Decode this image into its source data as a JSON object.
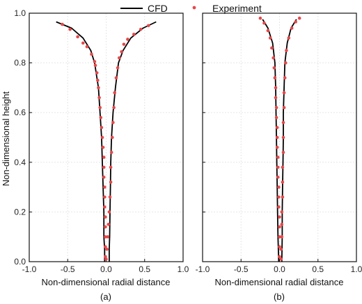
{
  "legend": {
    "cfd_label": "CFD",
    "exp_label": "Experiment",
    "cfd_color": "#000000",
    "exp_color": "#e8474a"
  },
  "y_axis_label": "Non-dimensional height",
  "chart_data": [
    {
      "type": "line",
      "panel_label": "(a)",
      "xlabel": "Non-dimensional radial distance",
      "ylabel": "Non-dimensional height",
      "xlim": [
        -1.0,
        1.0
      ],
      "ylim": [
        0.0,
        1.0
      ],
      "xticks": [
        "-1.0",
        "-0.5",
        "0.0",
        "0.5",
        "1.0"
      ],
      "yticks": [
        "0.0",
        "0.2",
        "0.4",
        "0.6",
        "0.8",
        "1.0"
      ],
      "grid": true,
      "series": [
        {
          "name": "CFD",
          "kind": "line",
          "segments": [
            [
              [
                -0.02,
                0.0
              ],
              [
                -0.02,
                0.05
              ],
              [
                -0.03,
                0.1
              ],
              [
                -0.03,
                0.2
              ],
              [
                -0.04,
                0.3
              ],
              [
                -0.05,
                0.4
              ],
              [
                -0.06,
                0.5
              ],
              [
                -0.08,
                0.6
              ],
              [
                -0.1,
                0.7
              ],
              [
                -0.15,
                0.8
              ],
              [
                -0.2,
                0.85
              ],
              [
                -0.3,
                0.9
              ],
              [
                -0.45,
                0.94
              ],
              [
                -0.65,
                0.965
              ]
            ],
            [
              [
                0.04,
                0.0
              ],
              [
                0.04,
                0.05
              ],
              [
                0.045,
                0.1
              ],
              [
                0.05,
                0.2
              ],
              [
                0.055,
                0.3
              ],
              [
                0.06,
                0.4
              ],
              [
                0.07,
                0.5
              ],
              [
                0.09,
                0.6
              ],
              [
                0.12,
                0.7
              ],
              [
                0.16,
                0.8
              ],
              [
                0.22,
                0.85
              ],
              [
                0.32,
                0.9
              ],
              [
                0.48,
                0.94
              ],
              [
                0.65,
                0.965
              ]
            ]
          ]
        },
        {
          "name": "Experiment",
          "kind": "scatter",
          "points": [
            [
              -0.57,
              0.955
            ],
            [
              -0.47,
              0.935
            ],
            [
              -0.37,
              0.905
            ],
            [
              -0.3,
              0.88
            ],
            [
              -0.25,
              0.865
            ],
            [
              -0.19,
              0.835
            ],
            [
              -0.15,
              0.805
            ],
            [
              -0.14,
              0.79
            ],
            [
              -0.12,
              0.76
            ],
            [
              -0.11,
              0.73
            ],
            [
              -0.1,
              0.7
            ],
            [
              -0.09,
              0.66
            ],
            [
              -0.08,
              0.62
            ],
            [
              -0.07,
              0.58
            ],
            [
              -0.06,
              0.54
            ],
            [
              -0.05,
              0.5
            ],
            [
              -0.04,
              0.46
            ],
            [
              -0.03,
              0.42
            ],
            [
              -0.03,
              0.38
            ],
            [
              -0.03,
              0.34
            ],
            [
              -0.02,
              0.3
            ],
            [
              -0.02,
              0.26
            ],
            [
              -0.02,
              0.22
            ],
            [
              -0.01,
              0.18
            ],
            [
              -0.01,
              0.14
            ],
            [
              -0.01,
              0.1
            ],
            [
              -0.01,
              0.06
            ],
            [
              -0.01,
              0.02
            ],
            [
              0.0,
              0.01
            ],
            [
              0.01,
              0.05
            ],
            [
              0.02,
              0.1
            ],
            [
              0.03,
              0.15
            ],
            [
              0.04,
              0.2
            ],
            [
              0.05,
              0.26
            ],
            [
              0.06,
              0.32
            ],
            [
              0.06,
              0.38
            ],
            [
              0.07,
              0.44
            ],
            [
              0.08,
              0.5
            ],
            [
              0.09,
              0.56
            ],
            [
              0.1,
              0.62
            ],
            [
              0.11,
              0.68
            ],
            [
              0.13,
              0.74
            ],
            [
              0.15,
              0.78
            ],
            [
              0.17,
              0.82
            ],
            [
              0.2,
              0.845
            ],
            [
              0.23,
              0.875
            ],
            [
              0.28,
              0.895
            ],
            [
              0.36,
              0.915
            ],
            [
              0.45,
              0.935
            ],
            [
              0.55,
              0.95
            ]
          ]
        }
      ]
    },
    {
      "type": "line",
      "panel_label": "(b)",
      "xlabel": "Non-dimensional radial distance",
      "xlim": [
        -1.0,
        1.0
      ],
      "ylim": [
        0.0,
        1.0
      ],
      "xticks": [
        "-1.0",
        "-0.5",
        "0.0",
        "0.5",
        "1.0"
      ],
      "yticks": [
        "0.0",
        "0.2",
        "0.4",
        "0.6",
        "0.8",
        "1.0"
      ],
      "grid": true,
      "series": [
        {
          "name": "CFD",
          "kind": "line",
          "segments": [
            [
              [
                -0.01,
                0.0
              ],
              [
                -0.02,
                0.1
              ],
              [
                -0.025,
                0.2
              ],
              [
                -0.03,
                0.3
              ],
              [
                -0.035,
                0.4
              ],
              [
                -0.04,
                0.5
              ],
              [
                -0.045,
                0.6
              ],
              [
                -0.05,
                0.7
              ],
              [
                -0.06,
                0.8
              ],
              [
                -0.09,
                0.88
              ],
              [
                -0.15,
                0.94
              ],
              [
                -0.22,
                0.975
              ]
            ],
            [
              [
                0.03,
                0.0
              ],
              [
                0.035,
                0.1
              ],
              [
                0.035,
                0.2
              ],
              [
                0.04,
                0.3
              ],
              [
                0.045,
                0.4
              ],
              [
                0.05,
                0.5
              ],
              [
                0.05,
                0.6
              ],
              [
                0.06,
                0.7
              ],
              [
                0.07,
                0.8
              ],
              [
                0.1,
                0.88
              ],
              [
                0.15,
                0.94
              ],
              [
                0.22,
                0.975
              ]
            ]
          ]
        },
        {
          "name": "Experiment",
          "kind": "scatter",
          "points": [
            [
              -0.25,
              0.98
            ],
            [
              -0.2,
              0.96
            ],
            [
              -0.15,
              0.93
            ],
            [
              -0.12,
              0.9
            ],
            [
              -0.1,
              0.86
            ],
            [
              -0.08,
              0.82
            ],
            [
              -0.07,
              0.78
            ],
            [
              -0.06,
              0.74
            ],
            [
              -0.05,
              0.7
            ],
            [
              -0.05,
              0.66
            ],
            [
              -0.04,
              0.62
            ],
            [
              -0.04,
              0.58
            ],
            [
              -0.03,
              0.54
            ],
            [
              -0.03,
              0.5
            ],
            [
              -0.03,
              0.46
            ],
            [
              -0.02,
              0.42
            ],
            [
              -0.02,
              0.38
            ],
            [
              -0.02,
              0.34
            ],
            [
              -0.01,
              0.3
            ],
            [
              -0.01,
              0.26
            ],
            [
              -0.01,
              0.22
            ],
            [
              0.0,
              0.18
            ],
            [
              0.0,
              0.14
            ],
            [
              0.0,
              0.1
            ],
            [
              0.0,
              0.06
            ],
            [
              0.0,
              0.02
            ],
            [
              0.02,
              0.01
            ],
            [
              0.02,
              0.05
            ],
            [
              0.03,
              0.1
            ],
            [
              0.03,
              0.15
            ],
            [
              0.03,
              0.2
            ],
            [
              0.04,
              0.26
            ],
            [
              0.04,
              0.32
            ],
            [
              0.04,
              0.38
            ],
            [
              0.05,
              0.44
            ],
            [
              0.05,
              0.5
            ],
            [
              0.05,
              0.56
            ],
            [
              0.06,
              0.62
            ],
            [
              0.06,
              0.68
            ],
            [
              0.07,
              0.74
            ],
            [
              0.08,
              0.8
            ],
            [
              0.09,
              0.85
            ],
            [
              0.12,
              0.9
            ],
            [
              0.16,
              0.94
            ],
            [
              0.21,
              0.965
            ],
            [
              0.26,
              0.98
            ]
          ]
        }
      ]
    }
  ]
}
